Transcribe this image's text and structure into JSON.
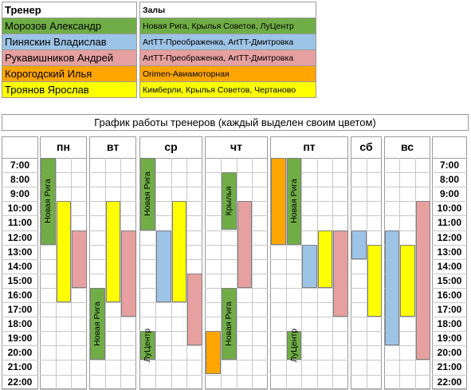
{
  "legend": {
    "trainer_header": "Тренер",
    "halls_header": "Залы",
    "rows": [
      {
        "trainer": "Морозов Александр",
        "halls": "Новая Рига, Крылья Советов, ЛуЦентр",
        "color": "#70ad47"
      },
      {
        "trainer": "Пиняскин Владислав",
        "halls": "ArtTT-Преображенка, ArtTT-Дмитровка",
        "color": "#9dc3e6"
      },
      {
        "trainer": "Рукавишников Андрей",
        "halls": "ArtTT-Преображенка, ArtTT-Дмитровка",
        "color": "#e6a0a0"
      },
      {
        "trainer": "Корогодский Илья",
        "halls": "Orimen-Авиамоторная",
        "color": "#ffa500"
      },
      {
        "trainer": "Троянов Ярослав",
        "halls": "Кимберли, Крылья Советов, Чертаново",
        "color": "#ffff00"
      }
    ]
  },
  "schedule_title": "График работы тренеров (каждый выделен своим цветом)",
  "days": [
    "пн",
    "вт",
    "ср",
    "чт",
    "пт",
    "сб",
    "вс"
  ],
  "times": [
    "7:00",
    "8:00",
    "9:00",
    "10:00",
    "11:00",
    "12:00",
    "13:00",
    "14:00",
    "15:00",
    "16:00",
    "17:00",
    "18:00",
    "19:00",
    "20:00",
    "21:00",
    "22:00"
  ],
  "blocks": [
    {
      "day": 0,
      "sub": 0,
      "start": 7,
      "end": 13,
      "trainer": 0,
      "label": "Новая Рига"
    },
    {
      "day": 0,
      "sub": 1,
      "start": 10,
      "end": 17,
      "trainer": 4,
      "label": ""
    },
    {
      "day": 0,
      "sub": 2,
      "start": 12,
      "end": 16,
      "trainer": 2,
      "label": ""
    },
    {
      "day": 1,
      "sub": 0,
      "start": 16,
      "end": 21,
      "trainer": 0,
      "label": "Новая Рига"
    },
    {
      "day": 1,
      "sub": 1,
      "start": 10,
      "end": 17,
      "trainer": 4,
      "label": ""
    },
    {
      "day": 1,
      "sub": 2,
      "start": 12,
      "end": 18,
      "trainer": 2,
      "label": ""
    },
    {
      "day": 2,
      "sub": 0,
      "start": 7,
      "end": 12,
      "trainer": 0,
      "label": "Новая Рига"
    },
    {
      "day": 2,
      "sub": 0,
      "start": 19,
      "end": 21,
      "trainer": 0,
      "label": "ЛуЦентр"
    },
    {
      "day": 2,
      "sub": 1,
      "start": 12,
      "end": 17,
      "trainer": 1,
      "label": ""
    },
    {
      "day": 2,
      "sub": 2,
      "start": 10,
      "end": 17,
      "trainer": 4,
      "label": ""
    },
    {
      "day": 2,
      "sub": 3,
      "start": 15,
      "end": 20,
      "trainer": 2,
      "label": ""
    },
    {
      "day": 3,
      "sub": 0,
      "start": 19,
      "end": 22,
      "trainer": 3,
      "label": ""
    },
    {
      "day": 3,
      "sub": 1,
      "start": 8,
      "end": 12,
      "trainer": 0,
      "label": "Крылья"
    },
    {
      "day": 3,
      "sub": 1,
      "start": 16,
      "end": 21,
      "trainer": 0,
      "label": "Новая Рига"
    },
    {
      "day": 3,
      "sub": 2,
      "start": 10,
      "end": 16,
      "trainer": 2,
      "label": ""
    },
    {
      "day": 4,
      "sub": 0,
      "start": 7,
      "end": 13,
      "trainer": 3,
      "label": ""
    },
    {
      "day": 4,
      "sub": 1,
      "start": 7,
      "end": 13,
      "trainer": 0,
      "label": "Новая Рига"
    },
    {
      "day": 4,
      "sub": 1,
      "start": 19,
      "end": 21,
      "trainer": 0,
      "label": "ЛуЦентр"
    },
    {
      "day": 4,
      "sub": 2,
      "start": 13,
      "end": 16,
      "trainer": 1,
      "label": ""
    },
    {
      "day": 4,
      "sub": 3,
      "start": 12,
      "end": 16,
      "trainer": 4,
      "label": ""
    },
    {
      "day": 4,
      "sub": 4,
      "start": 12,
      "end": 18,
      "trainer": 2,
      "label": ""
    },
    {
      "day": 5,
      "sub": 0,
      "start": 12,
      "end": 14,
      "trainer": 1,
      "label": ""
    },
    {
      "day": 5,
      "sub": 1,
      "start": 13,
      "end": 18,
      "trainer": 4,
      "label": ""
    },
    {
      "day": 6,
      "sub": 0,
      "start": 12,
      "end": 20,
      "trainer": 1,
      "label": ""
    },
    {
      "day": 6,
      "sub": 1,
      "start": 13,
      "end": 18,
      "trainer": 4,
      "label": ""
    },
    {
      "day": 6,
      "sub": 2,
      "start": 10,
      "end": 21,
      "trainer": 2,
      "label": ""
    }
  ]
}
